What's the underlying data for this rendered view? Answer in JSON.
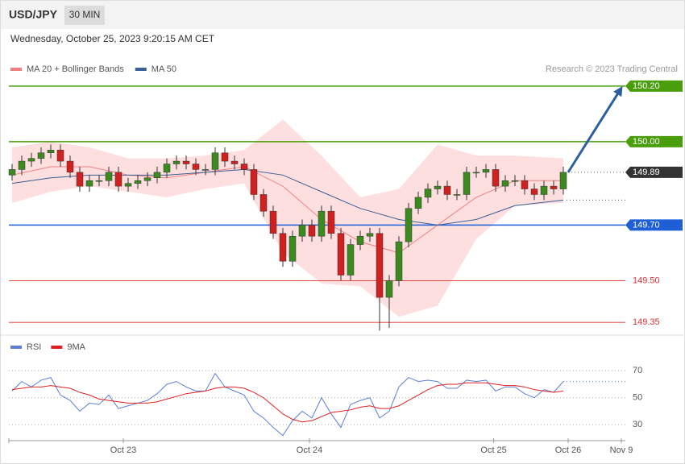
{
  "header": {
    "symbol": "USD/JPY",
    "interval": "30 MIN",
    "datetime": "Wednesday, October 25, 2023 9:20:15 AM CET"
  },
  "chart_data": [
    {
      "type": "candlestick",
      "credit": "Research © 2023 Trading Central",
      "xlim": [
        0,
        63.5
      ],
      "ylim": [
        149.307,
        150.307
      ],
      "up_color": "#3a8a1e",
      "down_color": "#d02020",
      "x": [
        0,
        1,
        2,
        3,
        4,
        5,
        6,
        7,
        8,
        9,
        10,
        11,
        12,
        13,
        14,
        15,
        16,
        17,
        18,
        19,
        20,
        21,
        22,
        23,
        24,
        25,
        26,
        27,
        28,
        29,
        30,
        31,
        32,
        33,
        34,
        35,
        36,
        37,
        38,
        39,
        40,
        41,
        42,
        43,
        44,
        45,
        46,
        47,
        48,
        49,
        50,
        51,
        52,
        53,
        54,
        55,
        56,
        57
      ],
      "open": [
        149.88,
        149.9,
        149.93,
        149.94,
        149.96,
        149.97,
        149.93,
        149.89,
        149.84,
        149.86,
        149.86,
        149.89,
        149.84,
        149.85,
        149.86,
        149.87,
        149.89,
        149.92,
        149.93,
        149.92,
        149.9,
        149.9,
        149.96,
        149.93,
        149.92,
        149.9,
        149.81,
        149.75,
        149.67,
        149.57,
        149.66,
        149.7,
        149.66,
        149.75,
        149.67,
        149.52,
        149.63,
        149.66,
        149.67,
        149.44,
        149.5,
        149.64,
        149.76,
        149.8,
        149.83,
        149.84,
        149.81,
        149.81,
        149.89,
        149.89,
        149.9,
        149.84,
        149.86,
        149.86,
        149.83,
        149.81,
        149.84,
        149.83
      ],
      "high": [
        149.92,
        149.95,
        149.96,
        149.98,
        149.99,
        149.99,
        149.95,
        149.91,
        149.88,
        149.88,
        149.91,
        149.91,
        149.87,
        149.88,
        149.89,
        149.91,
        149.94,
        149.95,
        149.95,
        149.94,
        149.92,
        149.98,
        149.98,
        149.95,
        149.94,
        149.92,
        149.83,
        149.77,
        149.69,
        149.68,
        149.72,
        149.72,
        149.77,
        149.77,
        149.69,
        149.65,
        149.68,
        149.69,
        149.69,
        149.52,
        149.66,
        149.78,
        149.82,
        149.85,
        149.86,
        149.86,
        149.83,
        149.91,
        149.91,
        149.92,
        149.92,
        149.88,
        149.88,
        149.88,
        149.85,
        149.86,
        149.86,
        149.91
      ],
      "low": [
        149.86,
        149.88,
        149.91,
        149.92,
        149.94,
        149.91,
        149.87,
        149.82,
        149.82,
        149.84,
        149.84,
        149.82,
        149.82,
        149.83,
        149.84,
        149.85,
        149.87,
        149.9,
        149.9,
        149.88,
        149.88,
        149.88,
        149.91,
        149.9,
        149.88,
        149.79,
        149.73,
        149.65,
        149.55,
        149.55,
        149.64,
        149.64,
        149.64,
        149.65,
        149.5,
        149.5,
        149.61,
        149.64,
        149.32,
        149.33,
        149.48,
        149.62,
        149.74,
        149.78,
        149.81,
        149.79,
        149.79,
        149.79,
        149.87,
        149.87,
        149.82,
        149.82,
        149.84,
        149.81,
        149.79,
        149.79,
        149.81,
        149.81
      ],
      "close": [
        149.9,
        149.93,
        149.94,
        149.96,
        149.97,
        149.93,
        149.89,
        149.84,
        149.86,
        149.86,
        149.89,
        149.84,
        149.85,
        149.86,
        149.87,
        149.89,
        149.92,
        149.93,
        149.92,
        149.9,
        149.9,
        149.96,
        149.93,
        149.92,
        149.9,
        149.81,
        149.75,
        149.67,
        149.57,
        149.66,
        149.7,
        149.66,
        149.75,
        149.67,
        149.52,
        149.63,
        149.66,
        149.67,
        149.44,
        149.5,
        149.64,
        149.76,
        149.8,
        149.83,
        149.84,
        149.81,
        149.81,
        149.89,
        149.89,
        149.9,
        149.84,
        149.86,
        149.86,
        149.83,
        149.81,
        149.84,
        149.83,
        149.89
      ],
      "overlays": [
        {
          "name": "MA 20 + Bollinger Bands",
          "color": "#f08080",
          "band_color": "#fdd9d9",
          "x": [
            0,
            4,
            8,
            12,
            16,
            20,
            24,
            28,
            32,
            36,
            40,
            44,
            48,
            52,
            57
          ],
          "values": [
            149.88,
            149.91,
            149.91,
            149.88,
            149.87,
            149.89,
            149.91,
            149.84,
            149.72,
            149.64,
            149.6,
            149.7,
            149.8,
            149.86,
            149.86
          ],
          "upper": [
            149.98,
            150.0,
            149.98,
            149.94,
            149.94,
            149.95,
            149.97,
            150.08,
            149.95,
            149.8,
            149.83,
            149.99,
            149.95,
            149.95,
            149.94
          ],
          "lower": [
            149.78,
            149.82,
            149.84,
            149.82,
            149.8,
            149.83,
            149.85,
            149.6,
            149.49,
            149.48,
            149.37,
            149.41,
            149.65,
            149.77,
            149.78
          ]
        },
        {
          "name": "MA 50",
          "color": "#3a5f95",
          "x": [
            0,
            4,
            8,
            12,
            16,
            20,
            24,
            28,
            32,
            36,
            40,
            44,
            48,
            52,
            57
          ],
          "values": [
            149.85,
            149.87,
            149.88,
            149.88,
            149.88,
            149.89,
            149.9,
            149.88,
            149.82,
            149.76,
            149.72,
            149.7,
            149.72,
            149.77,
            149.79
          ]
        }
      ],
      "levels": [
        {
          "value": 150.2,
          "label": "150.20",
          "color": "#4a9e0c",
          "box": true
        },
        {
          "value": 150.0,
          "label": "150.00",
          "color": "#4a9e0c",
          "box": true
        },
        {
          "value": 149.89,
          "label": "149.89",
          "color": "#333333",
          "box": true,
          "dotted": true
        },
        {
          "value": 149.7,
          "label": "149.70",
          "color": "#1f5fd6",
          "box": true
        },
        {
          "value": 149.5,
          "label": "149.50",
          "color": "#e03030",
          "box": false
        },
        {
          "value": 149.35,
          "label": "149.35",
          "color": "#e03030",
          "box": false
        }
      ]
    },
    {
      "type": "line",
      "xlim": [
        0,
        63.5
      ],
      "ylim": [
        20,
        94
      ],
      "yticks": [
        30,
        50,
        70
      ],
      "xticks": [
        {
          "value": 11.5,
          "label": "Oct 23"
        },
        {
          "value": 30.75,
          "label": "Oct 24"
        },
        {
          "value": 49.8,
          "label": "Oct 25"
        },
        {
          "value": 57.5,
          "label": "Oct 26"
        },
        {
          "value": 63,
          "label": "Nov 9"
        }
      ],
      "x": [
        0,
        1,
        2,
        3,
        4,
        5,
        6,
        7,
        8,
        9,
        10,
        11,
        12,
        13,
        14,
        15,
        16,
        17,
        18,
        19,
        20,
        21,
        22,
        23,
        24,
        25,
        26,
        27,
        28,
        29,
        30,
        31,
        32,
        33,
        34,
        35,
        36,
        37,
        38,
        39,
        40,
        41,
        42,
        43,
        44,
        45,
        46,
        47,
        48,
        49,
        50,
        51,
        52,
        53,
        54,
        55,
        56,
        57
      ],
      "series": [
        {
          "name": "RSI",
          "color": "#5b7fd6",
          "values": [
            55,
            62,
            58,
            63,
            65,
            52,
            48,
            40,
            46,
            45,
            52,
            42,
            44,
            46,
            48,
            53,
            60,
            62,
            58,
            55,
            55,
            68,
            58,
            55,
            52,
            40,
            35,
            28,
            22,
            33,
            40,
            35,
            50,
            38,
            28,
            45,
            48,
            50,
            35,
            40,
            58,
            65,
            62,
            63,
            62,
            57,
            57,
            63,
            62,
            63,
            55,
            58,
            58,
            53,
            50,
            56,
            54,
            62
          ]
        },
        {
          "name": "9MA",
          "color": "#e02020",
          "values": [
            56,
            57,
            58,
            58,
            59,
            58,
            57,
            54,
            52,
            49,
            48,
            47,
            46,
            46,
            46,
            47,
            49,
            51,
            53,
            54,
            55,
            57,
            58,
            58,
            57,
            54,
            50,
            44,
            38,
            34,
            32,
            33,
            36,
            39,
            40,
            41,
            43,
            44,
            42,
            42,
            44,
            48,
            52,
            56,
            59,
            60,
            60,
            61,
            61,
            61,
            60,
            59,
            59,
            58,
            56,
            55,
            54,
            55
          ]
        }
      ]
    }
  ]
}
